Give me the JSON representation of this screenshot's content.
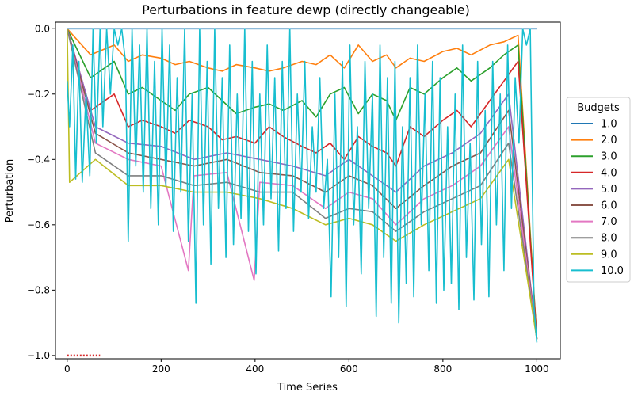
{
  "chart_data": {
    "type": "line",
    "title": "Perturbations in feature dewp (directly changeable)",
    "xlabel": "Time Series",
    "ylabel": "Perturbation",
    "xlim": [
      -25,
      1050
    ],
    "ylim": [
      -1.01,
      0.02
    ],
    "xticks": [
      0,
      200,
      400,
      600,
      800,
      1000
    ],
    "yticks": [
      0.0,
      -0.2,
      -0.4,
      -0.6,
      -0.8,
      -1.0
    ],
    "ytick_labels": [
      "0.0",
      "−0.2",
      "−0.4",
      "−0.6",
      "−0.8",
      "−1.0"
    ],
    "grid": false,
    "legend": {
      "title": "Budgets",
      "placement": "center-right (outside)"
    },
    "colors": [
      "#1f77b4",
      "#ff7f0e",
      "#2ca02c",
      "#d62728",
      "#9467bd",
      "#8c564b",
      "#e377c2",
      "#7f7f7f",
      "#bcbd22",
      "#17becf"
    ],
    "note_marker": {
      "x": [
        0,
        70
      ],
      "y": -1.0,
      "color": "#d62728"
    },
    "series": [
      {
        "name": "1.0",
        "x": [
          0,
          1000
        ],
        "values": [
          0.0,
          0.0
        ]
      },
      {
        "name": "2.0",
        "x": [
          0,
          50,
          100,
          130,
          160,
          200,
          230,
          260,
          300,
          330,
          360,
          400,
          430,
          460,
          500,
          530,
          560,
          590,
          620,
          650,
          680,
          700,
          730,
          760,
          800,
          830,
          860,
          900,
          930,
          960,
          1000
        ],
        "values": [
          0.0,
          -0.08,
          -0.05,
          -0.1,
          -0.08,
          -0.09,
          -0.11,
          -0.1,
          -0.12,
          -0.13,
          -0.11,
          -0.12,
          -0.13,
          -0.12,
          -0.1,
          -0.11,
          -0.08,
          -0.12,
          -0.05,
          -0.1,
          -0.08,
          -0.12,
          -0.09,
          -0.1,
          -0.07,
          -0.06,
          -0.08,
          -0.05,
          -0.04,
          -0.02,
          -0.95
        ]
      },
      {
        "name": "3.0",
        "x": [
          0,
          50,
          100,
          130,
          160,
          200,
          230,
          260,
          300,
          330,
          360,
          400,
          430,
          460,
          500,
          530,
          560,
          590,
          620,
          650,
          680,
          700,
          730,
          760,
          800,
          830,
          860,
          900,
          930,
          960,
          1000
        ],
        "values": [
          0.0,
          -0.15,
          -0.1,
          -0.2,
          -0.18,
          -0.22,
          -0.25,
          -0.2,
          -0.18,
          -0.22,
          -0.26,
          -0.24,
          -0.23,
          -0.25,
          -0.22,
          -0.27,
          -0.2,
          -0.18,
          -0.26,
          -0.2,
          -0.22,
          -0.28,
          -0.18,
          -0.2,
          -0.15,
          -0.12,
          -0.16,
          -0.12,
          -0.08,
          -0.05,
          -0.95
        ]
      },
      {
        "name": "4.0",
        "x": [
          0,
          50,
          100,
          130,
          160,
          200,
          230,
          260,
          300,
          330,
          360,
          400,
          430,
          460,
          500,
          530,
          560,
          590,
          620,
          650,
          680,
          700,
          730,
          760,
          800,
          830,
          860,
          900,
          930,
          960,
          1000
        ],
        "values": [
          0.0,
          -0.25,
          -0.2,
          -0.3,
          -0.28,
          -0.3,
          -0.32,
          -0.28,
          -0.3,
          -0.34,
          -0.33,
          -0.35,
          -0.3,
          -0.33,
          -0.36,
          -0.38,
          -0.35,
          -0.4,
          -0.33,
          -0.36,
          -0.38,
          -0.42,
          -0.3,
          -0.33,
          -0.28,
          -0.25,
          -0.3,
          -0.22,
          -0.16,
          -0.1,
          -0.95
        ]
      },
      {
        "name": "5.0",
        "x": [
          0,
          60,
          130,
          200,
          270,
          340,
          410,
          480,
          550,
          600,
          650,
          700,
          760,
          820,
          880,
          940,
          1000
        ],
        "values": [
          0.0,
          -0.3,
          -0.35,
          -0.36,
          -0.4,
          -0.38,
          -0.4,
          -0.42,
          -0.45,
          -0.4,
          -0.45,
          -0.5,
          -0.42,
          -0.38,
          -0.32,
          -0.2,
          -0.95
        ]
      },
      {
        "name": "6.0",
        "x": [
          0,
          60,
          130,
          200,
          270,
          340,
          410,
          480,
          550,
          600,
          650,
          700,
          760,
          820,
          880,
          940,
          1000
        ],
        "values": [
          0.0,
          -0.32,
          -0.38,
          -0.4,
          -0.42,
          -0.4,
          -0.44,
          -0.45,
          -0.5,
          -0.45,
          -0.48,
          -0.55,
          -0.48,
          -0.42,
          -0.38,
          -0.25,
          -0.95
        ]
      },
      {
        "name": "7.0",
        "x": [
          0,
          60,
          130,
          200,
          258,
          270,
          340,
          398,
          410,
          480,
          550,
          600,
          650,
          700,
          760,
          820,
          880,
          940,
          1000
        ],
        "values": [
          0.0,
          -0.35,
          -0.4,
          -0.42,
          -0.74,
          -0.45,
          -0.44,
          -0.77,
          -0.47,
          -0.48,
          -0.55,
          -0.5,
          -0.52,
          -0.6,
          -0.52,
          -0.48,
          -0.42,
          -0.3,
          -0.95
        ]
      },
      {
        "name": "8.0",
        "x": [
          0,
          60,
          130,
          200,
          270,
          340,
          410,
          480,
          550,
          600,
          650,
          700,
          760,
          820,
          880,
          940,
          1000
        ],
        "values": [
          0.0,
          -0.38,
          -0.45,
          -0.45,
          -0.48,
          -0.47,
          -0.5,
          -0.5,
          -0.58,
          -0.55,
          -0.56,
          -0.62,
          -0.56,
          -0.52,
          -0.48,
          -0.35,
          -0.95
        ]
      },
      {
        "name": "9.0",
        "x": [
          0,
          5,
          60,
          130,
          200,
          270,
          340,
          410,
          480,
          550,
          600,
          650,
          700,
          760,
          820,
          880,
          940,
          1000
        ],
        "values": [
          0.0,
          -0.47,
          -0.4,
          -0.48,
          -0.48,
          -0.5,
          -0.5,
          -0.52,
          -0.55,
          -0.6,
          -0.58,
          -0.6,
          -0.65,
          -0.6,
          -0.56,
          -0.52,
          -0.4,
          -0.95
        ]
      },
      {
        "name": "10.0",
        "x": [
          0,
          5,
          12,
          18,
          25,
          32,
          40,
          48,
          55,
          62,
          70,
          76,
          84,
          92,
          100,
          108,
          116,
          124,
          130,
          138,
          146,
          154,
          162,
          170,
          178,
          186,
          194,
          202,
          210,
          218,
          226,
          234,
          242,
          250,
          258,
          266,
          274,
          282,
          290,
          298,
          306,
          314,
          322,
          330,
          338,
          346,
          354,
          362,
          370,
          378,
          386,
          394,
          402,
          410,
          418,
          426,
          434,
          442,
          450,
          458,
          466,
          474,
          482,
          490,
          498,
          506,
          514,
          522,
          530,
          538,
          546,
          554,
          562,
          570,
          578,
          586,
          594,
          602,
          610,
          618,
          626,
          634,
          642,
          650,
          658,
          666,
          674,
          682,
          690,
          698,
          706,
          714,
          722,
          730,
          738,
          746,
          754,
          762,
          770,
          778,
          786,
          794,
          802,
          810,
          818,
          826,
          834,
          842,
          850,
          858,
          866,
          874,
          882,
          890,
          898,
          906,
          914,
          922,
          930,
          938,
          946,
          954,
          962,
          970,
          978,
          986,
          994,
          1000
        ],
        "values": [
          -0.16,
          -0.3,
          -0.05,
          -0.46,
          -0.1,
          -0.47,
          -0.2,
          -0.45,
          0.0,
          -0.35,
          0.0,
          -0.3,
          0.0,
          -0.2,
          0.0,
          -0.05,
          0.0,
          -0.1,
          -0.65,
          0.0,
          -0.42,
          -0.05,
          -0.5,
          0.0,
          -0.55,
          -0.1,
          -0.6,
          0.0,
          -0.48,
          -0.05,
          -0.62,
          -0.15,
          -0.5,
          0.0,
          -0.65,
          -0.2,
          -0.84,
          0.0,
          -0.6,
          -0.1,
          -0.72,
          0.0,
          -0.55,
          -0.15,
          -0.7,
          -0.05,
          -0.66,
          -0.2,
          -0.58,
          0.0,
          -0.62,
          -0.1,
          -0.75,
          -0.2,
          -0.6,
          -0.05,
          -0.52,
          -0.15,
          -0.68,
          -0.1,
          -0.55,
          0.0,
          -0.62,
          -0.2,
          -0.5,
          -0.1,
          -0.58,
          -0.3,
          -0.5,
          -0.15,
          -0.55,
          -0.4,
          -0.82,
          -0.2,
          -0.7,
          -0.1,
          -0.85,
          -0.05,
          -0.6,
          -0.3,
          -0.75,
          -0.1,
          -0.55,
          -0.2,
          -0.88,
          -0.05,
          -0.7,
          -0.15,
          -0.84,
          -0.1,
          -0.9,
          -0.3,
          -0.78,
          -0.15,
          -0.82,
          -0.05,
          -0.6,
          -0.2,
          -0.74,
          -0.1,
          -0.84,
          -0.15,
          -0.8,
          -0.3,
          -0.78,
          -0.2,
          -0.86,
          -0.05,
          -0.7,
          -0.35,
          -0.83,
          -0.1,
          -0.66,
          -0.25,
          -0.82,
          -0.1,
          -0.6,
          -0.2,
          -0.74,
          -0.05,
          -0.55,
          -0.15,
          -0.35,
          0.0,
          -0.05,
          0.0,
          -0.85,
          -0.96
        ]
      }
    ]
  }
}
